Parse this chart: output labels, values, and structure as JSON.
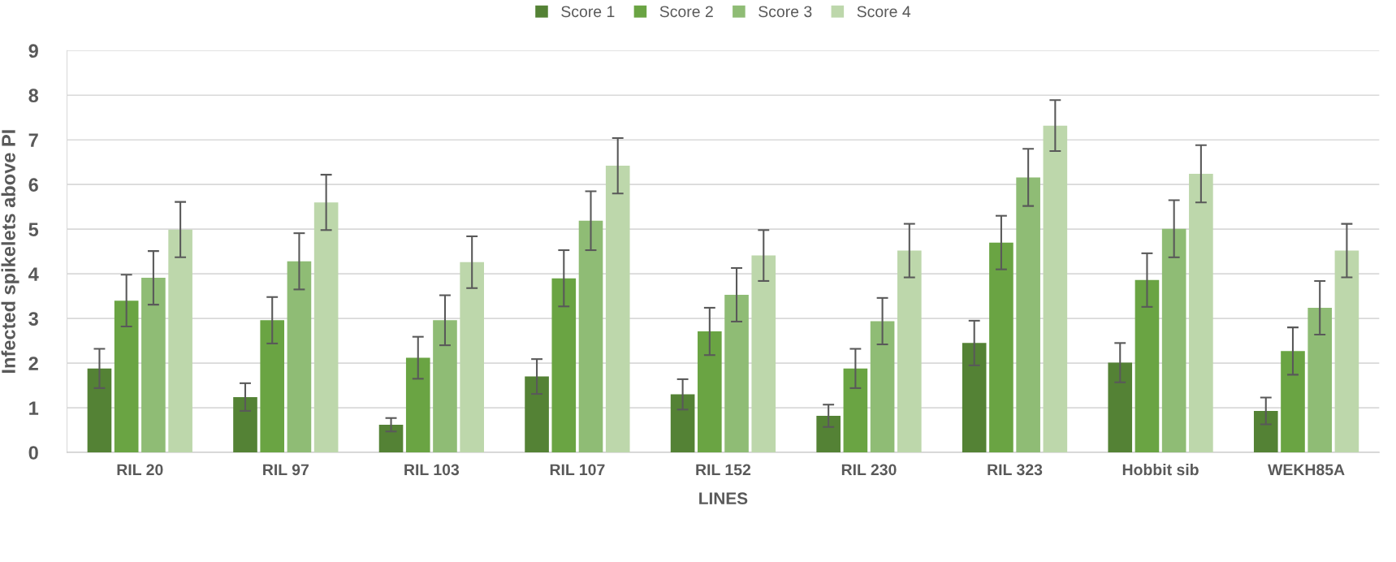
{
  "chart_data": {
    "type": "bar",
    "xlabel": "LINES",
    "ylabel": "Infected spikelets above PI",
    "categories": [
      "RIL 20",
      "RIL 97",
      "RIL 103",
      "RIL 107",
      "RIL 152",
      "RIL 230",
      "RIL 323",
      "Hobbit sib",
      "WEKH85A"
    ],
    "series": [
      {
        "name": "Score 1",
        "color": "#548235",
        "values": [
          1.88,
          1.24,
          0.62,
          1.7,
          1.3,
          0.82,
          2.45,
          2.01,
          0.93
        ],
        "errors": [
          0.44,
          0.31,
          0.15,
          0.39,
          0.34,
          0.25,
          0.5,
          0.44,
          0.3
        ]
      },
      {
        "name": "Score 2",
        "color": "#6aa443",
        "values": [
          3.4,
          2.96,
          2.12,
          3.9,
          2.71,
          1.88,
          4.7,
          3.86,
          2.27
        ],
        "errors": [
          0.58,
          0.52,
          0.47,
          0.63,
          0.53,
          0.44,
          0.6,
          0.6,
          0.53
        ]
      },
      {
        "name": "Score 3",
        "color": "#8fbc75",
        "values": [
          3.91,
          4.28,
          2.96,
          5.19,
          3.53,
          2.94,
          6.16,
          5.01,
          3.24
        ],
        "errors": [
          0.6,
          0.63,
          0.56,
          0.66,
          0.6,
          0.52,
          0.64,
          0.64,
          0.6
        ]
      },
      {
        "name": "Score 4",
        "color": "#bdd7ab",
        "values": [
          4.99,
          5.6,
          4.26,
          6.42,
          4.41,
          4.52,
          7.32,
          6.24,
          4.52
        ],
        "errors": [
          0.62,
          0.62,
          0.58,
          0.62,
          0.57,
          0.6,
          0.57,
          0.64,
          0.6
        ]
      }
    ],
    "ylim": [
      0,
      9
    ],
    "yticks": [
      0,
      1,
      2,
      3,
      4,
      5,
      6,
      7,
      8,
      9
    ],
    "grid": "y",
    "legend": "top"
  }
}
